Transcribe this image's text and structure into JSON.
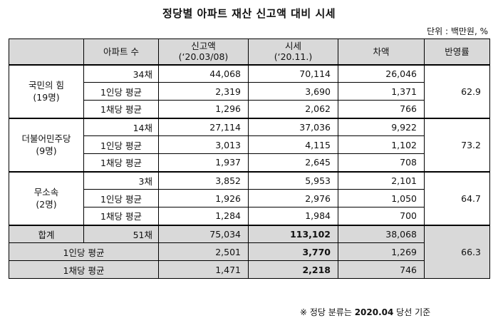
{
  "title": "정당별 아파트 재산 신고액 대비 시세",
  "unit": "단위 : 백만원, %",
  "header": {
    "col1": "아파트 수",
    "col2_line1": "신고액",
    "col2_line2": "(‘20.03/08)",
    "col3_line1": "시세",
    "col3_line2": "(‘20.11.)",
    "col4": "차액",
    "col5": "반영률"
  },
  "groups": [
    {
      "name": "국민의 힘",
      "members": "(19명)",
      "ratio": "62.9",
      "rows": [
        {
          "label": "34채",
          "declared": "44,068",
          "market": "70,114",
          "diff": "26,046"
        },
        {
          "label": "1인당 평균",
          "declared": "2,319",
          "market": "3,690",
          "diff": "1,371"
        },
        {
          "label": "1채당 평균",
          "declared": "1,296",
          "market": "2,062",
          "diff": "766"
        }
      ]
    },
    {
      "name": "더불어민주당",
      "members": "(9명)",
      "ratio": "73.2",
      "rows": [
        {
          "label": "14채",
          "declared": "27,114",
          "market": "37,036",
          "diff": "9,922"
        },
        {
          "label": "1인당 평균",
          "declared": "3,013",
          "market": "4,115",
          "diff": "1,102"
        },
        {
          "label": "1채당 평균",
          "declared": "1,937",
          "market": "2,645",
          "diff": "708"
        }
      ]
    },
    {
      "name": "무소속",
      "members": "(2명)",
      "ratio": "64.7",
      "rows": [
        {
          "label": "3채",
          "declared": "3,852",
          "market": "5,953",
          "diff": "2,101"
        },
        {
          "label": "1인당 평균",
          "declared": "1,926",
          "market": "2,976",
          "diff": "1,050"
        },
        {
          "label": "1채당 평균",
          "declared": "1,284",
          "market": "1,984",
          "diff": "700"
        }
      ]
    }
  ],
  "total": {
    "label": "합계",
    "count": "51채",
    "declared": "75,034",
    "market": "113,102",
    "diff": "38,068",
    "ratio": "66.3",
    "per_person": {
      "label": "1인당 평균",
      "declared": "2,501",
      "market": "3,770",
      "diff": "1,269"
    },
    "per_unit": {
      "label": "1채당 평균",
      "declared": "1,471",
      "market": "2,218",
      "diff": "746"
    }
  },
  "footnote": {
    "prefix": "※ 정당 분류는 ",
    "bold": "2020.04",
    "suffix": " 당선 기준"
  }
}
